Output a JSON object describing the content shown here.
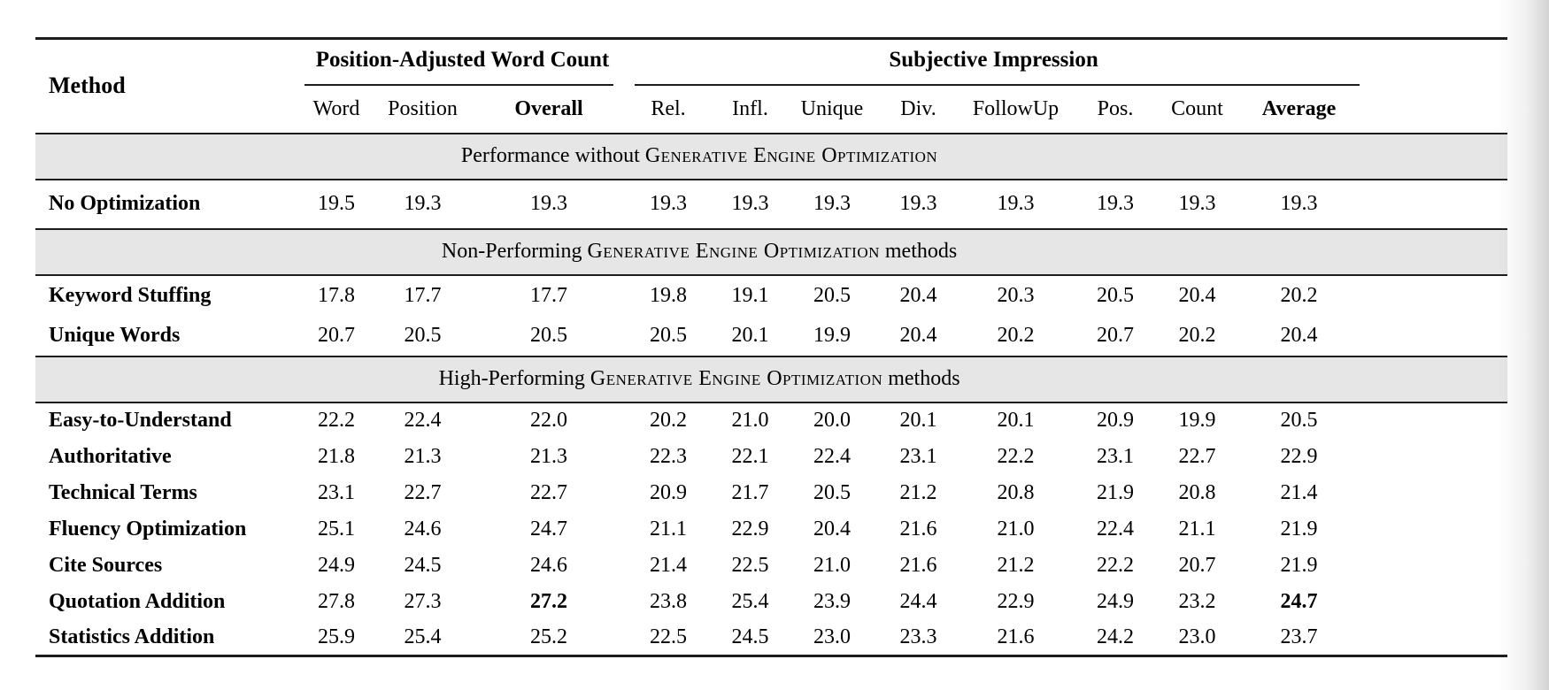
{
  "table": {
    "header": {
      "method_label": "Method",
      "groups": [
        {
          "label": "Position-Adjusted Word Count",
          "colspan": 3
        },
        {
          "label": "Subjective Impression",
          "colspan": 8
        }
      ],
      "subcolumns": [
        {
          "label": "Word",
          "bold": false
        },
        {
          "label": "Position",
          "bold": false
        },
        {
          "label": "Overall",
          "bold": true
        },
        {
          "label": "Rel.",
          "bold": false
        },
        {
          "label": "Infl.",
          "bold": false
        },
        {
          "label": "Unique",
          "bold": false
        },
        {
          "label": "Div.",
          "bold": false
        },
        {
          "label": "FollowUp",
          "bold": false
        },
        {
          "label": "Pos.",
          "bold": false
        },
        {
          "label": "Count",
          "bold": false
        },
        {
          "label": "Average",
          "bold": true
        }
      ]
    },
    "sections": [
      {
        "title": {
          "prefix": "Performance without ",
          "smallcaps": "Generative Engine Optimization",
          "suffix": ""
        },
        "rows": [
          {
            "label": "No Optimization",
            "values": [
              "19.5",
              "19.3",
              "19.3",
              "19.3",
              "19.3",
              "19.3",
              "19.3",
              "19.3",
              "19.3",
              "19.3",
              "19.3"
            ],
            "bold_value_indices": []
          }
        ]
      },
      {
        "title": {
          "prefix": "Non-Performing ",
          "smallcaps": "Generative Engine Optimization",
          "suffix": " methods"
        },
        "rows": [
          {
            "label": "Keyword Stuffing",
            "values": [
              "17.8",
              "17.7",
              "17.7",
              "19.8",
              "19.1",
              "20.5",
              "20.4",
              "20.3",
              "20.5",
              "20.4",
              "20.2"
            ],
            "bold_value_indices": []
          },
          {
            "label": "Unique Words",
            "values": [
              "20.7",
              "20.5",
              "20.5",
              "20.5",
              "20.1",
              "19.9",
              "20.4",
              "20.2",
              "20.7",
              "20.2",
              "20.4"
            ],
            "bold_value_indices": []
          }
        ]
      },
      {
        "title": {
          "prefix": "High-Performing ",
          "smallcaps": "Generative Engine Optimization",
          "suffix": " methods"
        },
        "rows": [
          {
            "label": "Easy-to-Understand",
            "values": [
              "22.2",
              "22.4",
              "22.0",
              "20.2",
              "21.0",
              "20.0",
              "20.1",
              "20.1",
              "20.9",
              "19.9",
              "20.5"
            ],
            "bold_value_indices": []
          },
          {
            "label": "Authoritative",
            "values": [
              "21.8",
              "21.3",
              "21.3",
              "22.3",
              "22.1",
              "22.4",
              "23.1",
              "22.2",
              "23.1",
              "22.7",
              "22.9"
            ],
            "bold_value_indices": []
          },
          {
            "label": "Technical Terms",
            "values": [
              "23.1",
              "22.7",
              "22.7",
              "20.9",
              "21.7",
              "20.5",
              "21.2",
              "20.8",
              "21.9",
              "20.8",
              "21.4"
            ],
            "bold_value_indices": []
          },
          {
            "label": "Fluency Optimization",
            "values": [
              "25.1",
              "24.6",
              "24.7",
              "21.1",
              "22.9",
              "20.4",
              "21.6",
              "21.0",
              "22.4",
              "21.1",
              "21.9"
            ],
            "bold_value_indices": []
          },
          {
            "label": "Cite Sources",
            "values": [
              "24.9",
              "24.5",
              "24.6",
              "21.4",
              "22.5",
              "21.0",
              "21.6",
              "21.2",
              "22.2",
              "20.7",
              "21.9"
            ],
            "bold_value_indices": []
          },
          {
            "label": "Quotation Addition",
            "values": [
              "27.8",
              "27.3",
              "27.2",
              "23.8",
              "25.4",
              "23.9",
              "24.4",
              "22.9",
              "24.9",
              "23.2",
              "24.7"
            ],
            "bold_value_indices": [
              2,
              10
            ]
          },
          {
            "label": "Statistics Addition",
            "values": [
              "25.9",
              "25.4",
              "25.2",
              "22.5",
              "24.5",
              "23.0",
              "23.3",
              "21.6",
              "24.2",
              "23.0",
              "23.7"
            ],
            "bold_value_indices": []
          }
        ]
      }
    ],
    "colors": {
      "section_band_bg": "#e6e6e6",
      "rule_color": "#1c1c1c",
      "text_color": "#000000",
      "page_bg": "#ffffff"
    }
  }
}
